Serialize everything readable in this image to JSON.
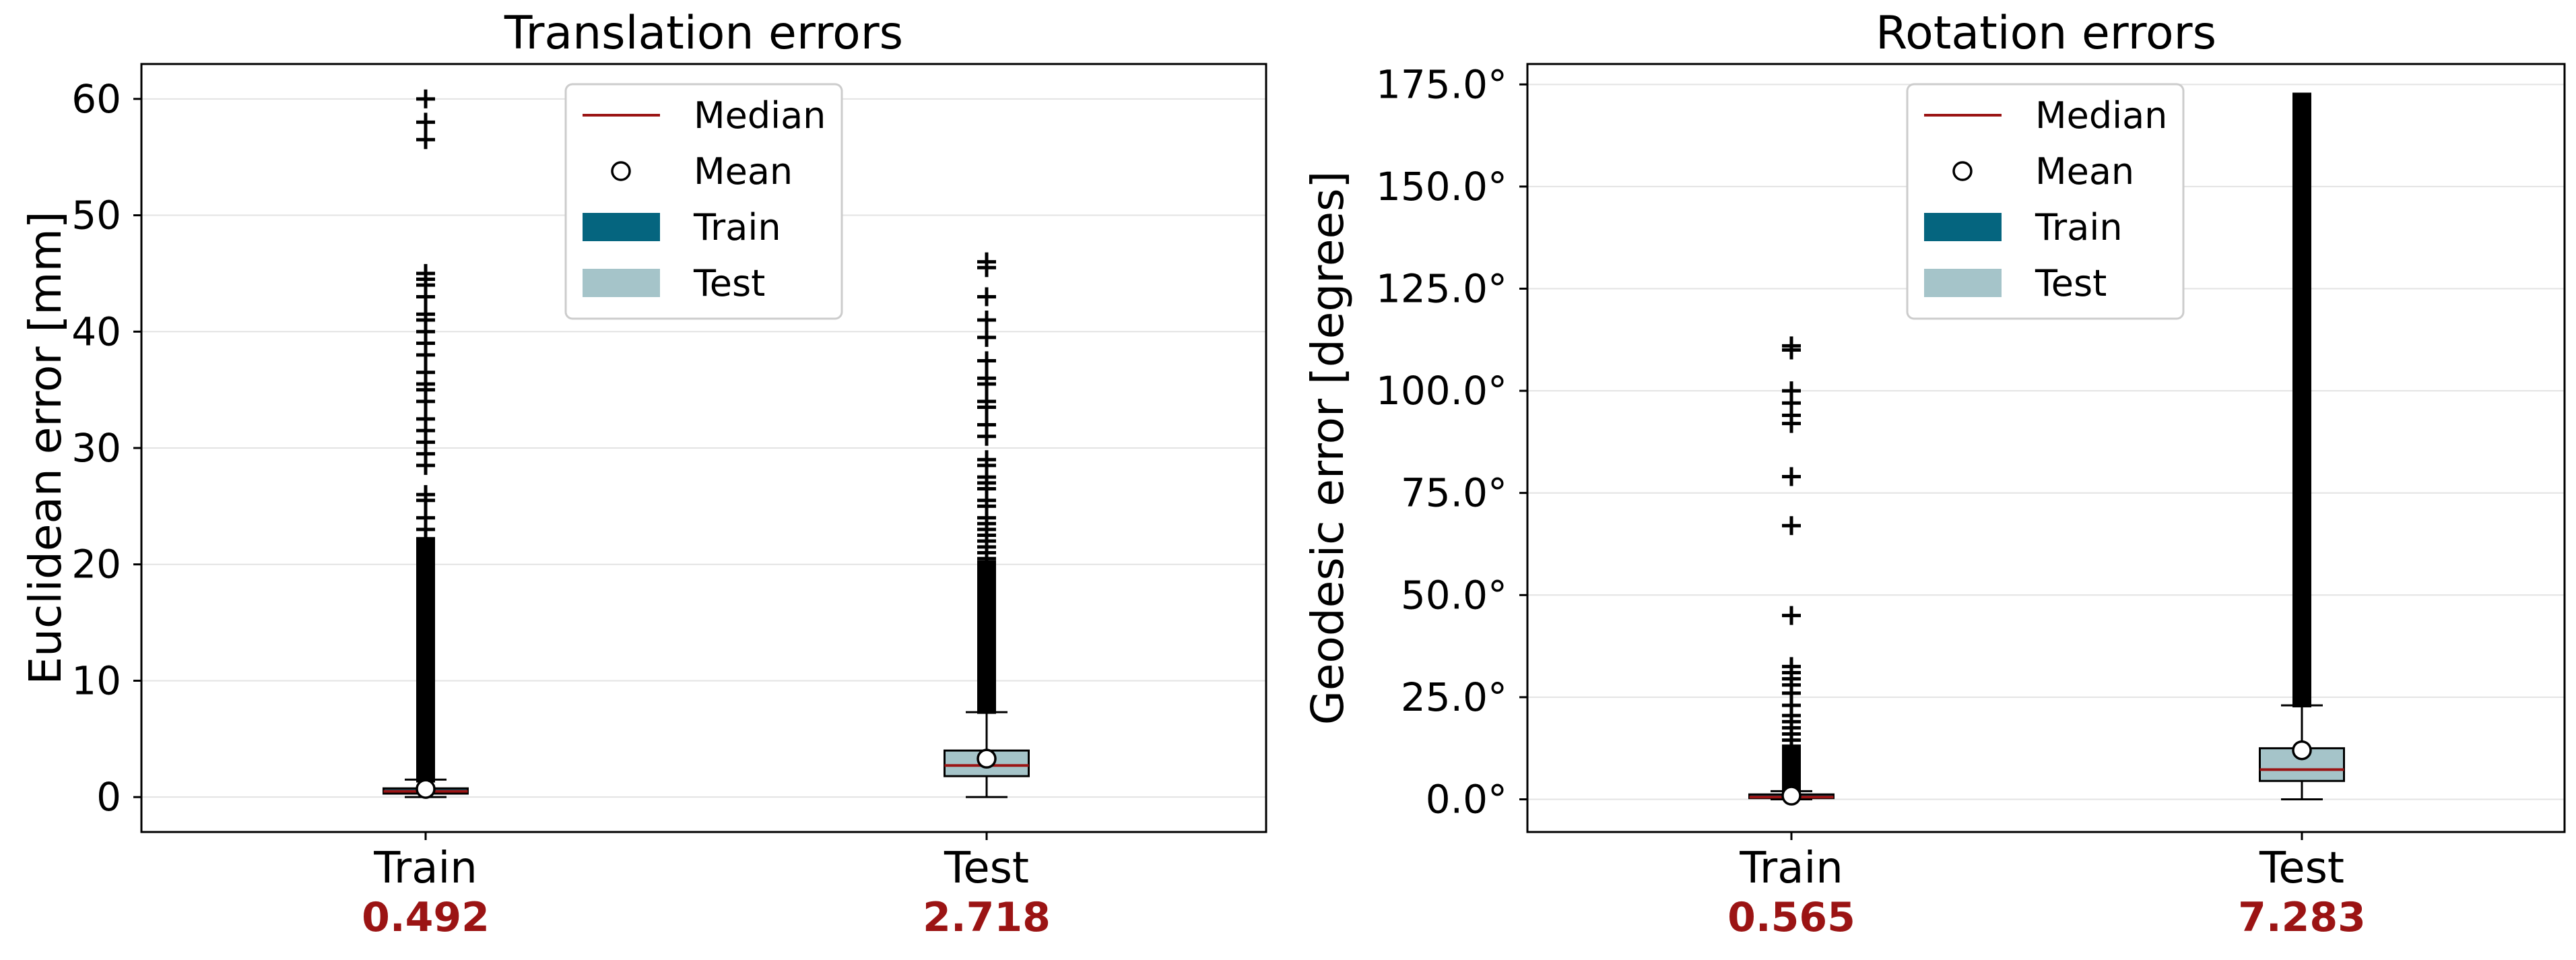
{
  "legend": {
    "median": "Median",
    "mean": "Mean",
    "train": "Train",
    "test": "Test"
  },
  "colors": {
    "train_box": "#05657f",
    "test_box": "#a5c4c9",
    "median_line": "#9b1414",
    "median_label": "#9b1414",
    "grid": "#e3e3e3"
  },
  "chart_data": [
    {
      "type": "box",
      "title": "Translation errors",
      "ylabel": "Euclidean error [mm]",
      "xlabel": "",
      "ylim": [
        -3,
        63
      ],
      "yticks": [
        0,
        10,
        20,
        30,
        40,
        50,
        60
      ],
      "ytick_labels": [
        "0",
        "10",
        "20",
        "30",
        "40",
        "50",
        "60"
      ],
      "grid": "horizontal",
      "legend_position": "top-center",
      "categories": [
        "Train",
        "Test"
      ],
      "median_labels": [
        "0.492",
        "2.718"
      ],
      "boxes": [
        {
          "name": "Train",
          "q1": 0.3,
          "median": 0.492,
          "q3": 0.75,
          "mean": 0.7,
          "whisker_low": 0.0,
          "whisker_high": 1.5,
          "fliers_range": [
            1.6,
            22
          ],
          "fliers": [
            23,
            24,
            25.5,
            26,
            28.5,
            29.5,
            30.5,
            31.5,
            32.5,
            34,
            35,
            35.5,
            36.5,
            38,
            39,
            40,
            41,
            41.5,
            43,
            44,
            44.5,
            45,
            56.5,
            58,
            60
          ]
        },
        {
          "name": "Test",
          "q1": 1.8,
          "median": 2.718,
          "q3": 4.0,
          "mean": 3.3,
          "whisker_low": 0.0,
          "whisker_high": 7.3,
          "fliers_range": [
            7.5,
            20
          ],
          "fliers": [
            20.5,
            21,
            21.5,
            22,
            22.5,
            23,
            23.5,
            24,
            25,
            25.5,
            26.5,
            27,
            27.5,
            28.5,
            29,
            31,
            32,
            33.5,
            34,
            35.5,
            36,
            37.5,
            39.5,
            41,
            43,
            45.5,
            46
          ]
        }
      ]
    },
    {
      "type": "box",
      "title": "Rotation errors",
      "ylabel": "Geodesic error [degrees]",
      "xlabel": "",
      "ylim": [
        -8,
        180
      ],
      "yticks": [
        0,
        25,
        50,
        75,
        100,
        125,
        150,
        175
      ],
      "ytick_labels": [
        "0.0°",
        "25.0°",
        "50.0°",
        "75.0°",
        "100.0°",
        "125.0°",
        "150.0°",
        "175.0°"
      ],
      "grid": "horizontal",
      "legend_position": "top-center",
      "categories": [
        "Train",
        "Test"
      ],
      "median_labels": [
        "0.565",
        "7.283"
      ],
      "boxes": [
        {
          "name": "Train",
          "q1": 0.3,
          "median": 0.565,
          "q3": 1.2,
          "mean": 0.9,
          "whisker_low": 0.0,
          "whisker_high": 2.0,
          "fliers_range": [
            2.2,
            12
          ],
          "fliers": [
            13,
            14.5,
            16,
            17.5,
            19,
            20.5,
            23,
            26,
            28,
            29.5,
            31,
            32.5,
            45,
            67,
            79,
            92,
            94,
            97,
            100,
            110,
            111
          ]
        },
        {
          "name": "Test",
          "q1": 4.5,
          "median": 7.283,
          "q3": 12.5,
          "mean": 12.0,
          "whisker_low": 0.0,
          "whisker_high": 23.0,
          "fliers_range": [
            23.5,
            172
          ],
          "fliers": []
        }
      ]
    }
  ]
}
